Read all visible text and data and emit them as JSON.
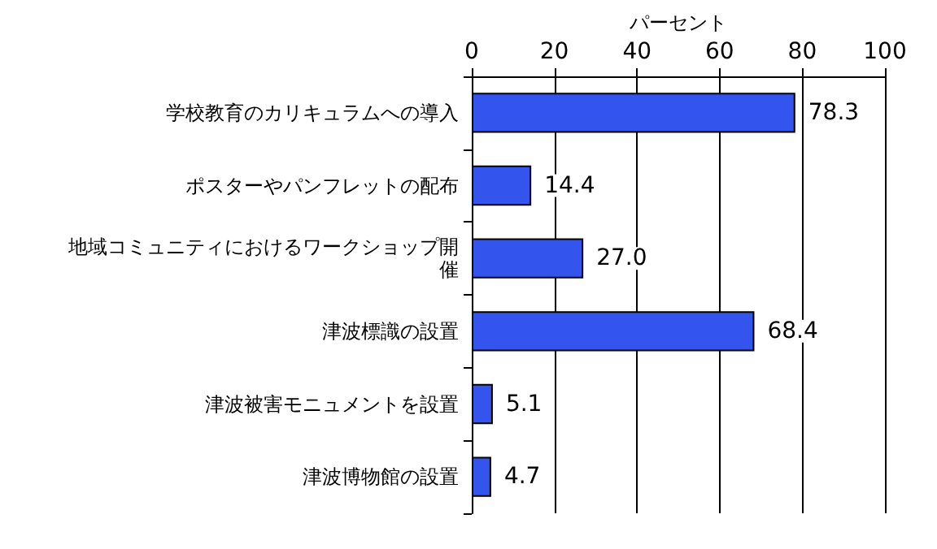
{
  "chart_data": {
    "type": "bar",
    "orientation": "horizontal",
    "xlabel": "パーセント",
    "categories": [
      "学校教育のカリキュラムへの導入",
      "ポスターやパンフレットの配布",
      "地域コミュニティにおけるワークショップ開催",
      "津波標識の設置",
      "津波被害モニュメントを設置",
      "津波博物館の設置"
    ],
    "values": [
      78.3,
      14.4,
      27.0,
      68.4,
      5.1,
      4.7
    ],
    "value_labels": [
      "78.3",
      "14.4",
      "27.0",
      "68.4",
      "5.1",
      "4.7"
    ],
    "color": "#3355ee",
    "xlim": [
      0,
      100
    ],
    "xticks": [
      0,
      20,
      40,
      60,
      80,
      100
    ],
    "grid": "x"
  }
}
